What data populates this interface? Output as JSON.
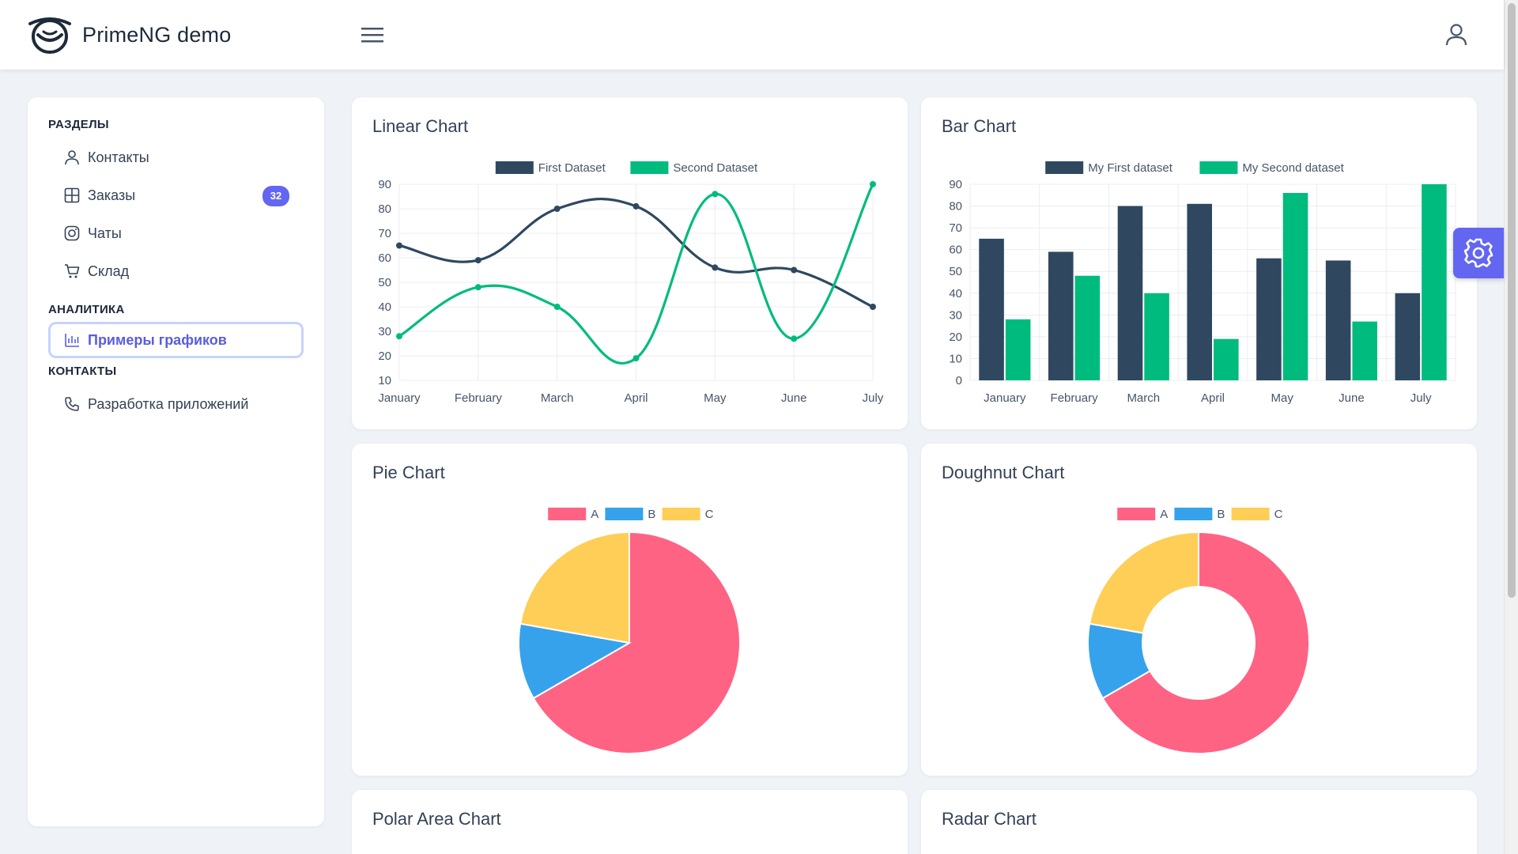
{
  "app": {
    "title": "PrimeNG demo"
  },
  "sidebar": {
    "sections": [
      {
        "title": "РАЗДЕЛЫ",
        "items": [
          {
            "label": "Контакты",
            "icon": "user-icon"
          },
          {
            "label": "Заказы",
            "icon": "table-icon",
            "badge": "32"
          },
          {
            "label": "Чаты",
            "icon": "instagram-icon"
          },
          {
            "label": "Склад",
            "icon": "cart-icon"
          }
        ]
      },
      {
        "title": "АНАЛИТИКА",
        "items": [
          {
            "label": "Примеры графиков",
            "icon": "chart-bar-icon",
            "active": true
          }
        ]
      },
      {
        "title": "КОНТАКТЫ",
        "items": [
          {
            "label": "Разработка приложений",
            "icon": "phone-icon"
          }
        ]
      }
    ]
  },
  "cards": {
    "linear": "Linear Chart",
    "bar": "Bar Chart",
    "pie": "Pie Chart",
    "doughnut": "Doughnut Chart",
    "polar": "Polar Area Chart",
    "radar": "Radar Chart"
  },
  "colors": {
    "accent": "#6366f1",
    "series_dark": "#2f4860",
    "series_green": "#00bb7e",
    "pie_a": "#ff6384",
    "pie_b": "#36a2eb",
    "pie_c": "#ffce56"
  },
  "chart_data": [
    {
      "id": "linear",
      "type": "line",
      "title": "Linear Chart",
      "categories": [
        "January",
        "February",
        "March",
        "April",
        "May",
        "June",
        "July"
      ],
      "series": [
        {
          "name": "First Dataset",
          "values": [
            65,
            59,
            80,
            81,
            56,
            55,
            40
          ],
          "color": "#2f4860"
        },
        {
          "name": "Second Dataset",
          "values": [
            28,
            48,
            40,
            19,
            86,
            27,
            90
          ],
          "color": "#00bb7e"
        }
      ],
      "ylim": [
        10,
        90
      ],
      "yticks": [
        10,
        20,
        30,
        40,
        50,
        60,
        70,
        80,
        90
      ],
      "smooth": true,
      "grid": true,
      "legend": "top-center"
    },
    {
      "id": "bar",
      "type": "bar",
      "title": "Bar Chart",
      "categories": [
        "January",
        "February",
        "March",
        "April",
        "May",
        "June",
        "July"
      ],
      "series": [
        {
          "name": "My First dataset",
          "values": [
            65,
            59,
            80,
            81,
            56,
            55,
            40
          ],
          "color": "#2f4860"
        },
        {
          "name": "My Second dataset",
          "values": [
            28,
            48,
            40,
            19,
            86,
            27,
            90
          ],
          "color": "#00bb7e"
        }
      ],
      "ylim": [
        0,
        90
      ],
      "yticks": [
        0,
        10,
        20,
        30,
        40,
        50,
        60,
        70,
        80,
        90
      ],
      "grid": true,
      "legend": "top-center"
    },
    {
      "id": "pie",
      "type": "pie",
      "title": "Pie Chart",
      "labels": [
        "A",
        "B",
        "C"
      ],
      "values": [
        300,
        50,
        100
      ],
      "colors": [
        "#ff6384",
        "#36a2eb",
        "#ffce56"
      ],
      "legend": "top-center"
    },
    {
      "id": "doughnut",
      "type": "pie",
      "title": "Doughnut Chart",
      "labels": [
        "A",
        "B",
        "C"
      ],
      "values": [
        300,
        50,
        100
      ],
      "colors": [
        "#ff6384",
        "#36a2eb",
        "#ffce56"
      ],
      "legend": "top-center",
      "doughnut": true
    }
  ]
}
